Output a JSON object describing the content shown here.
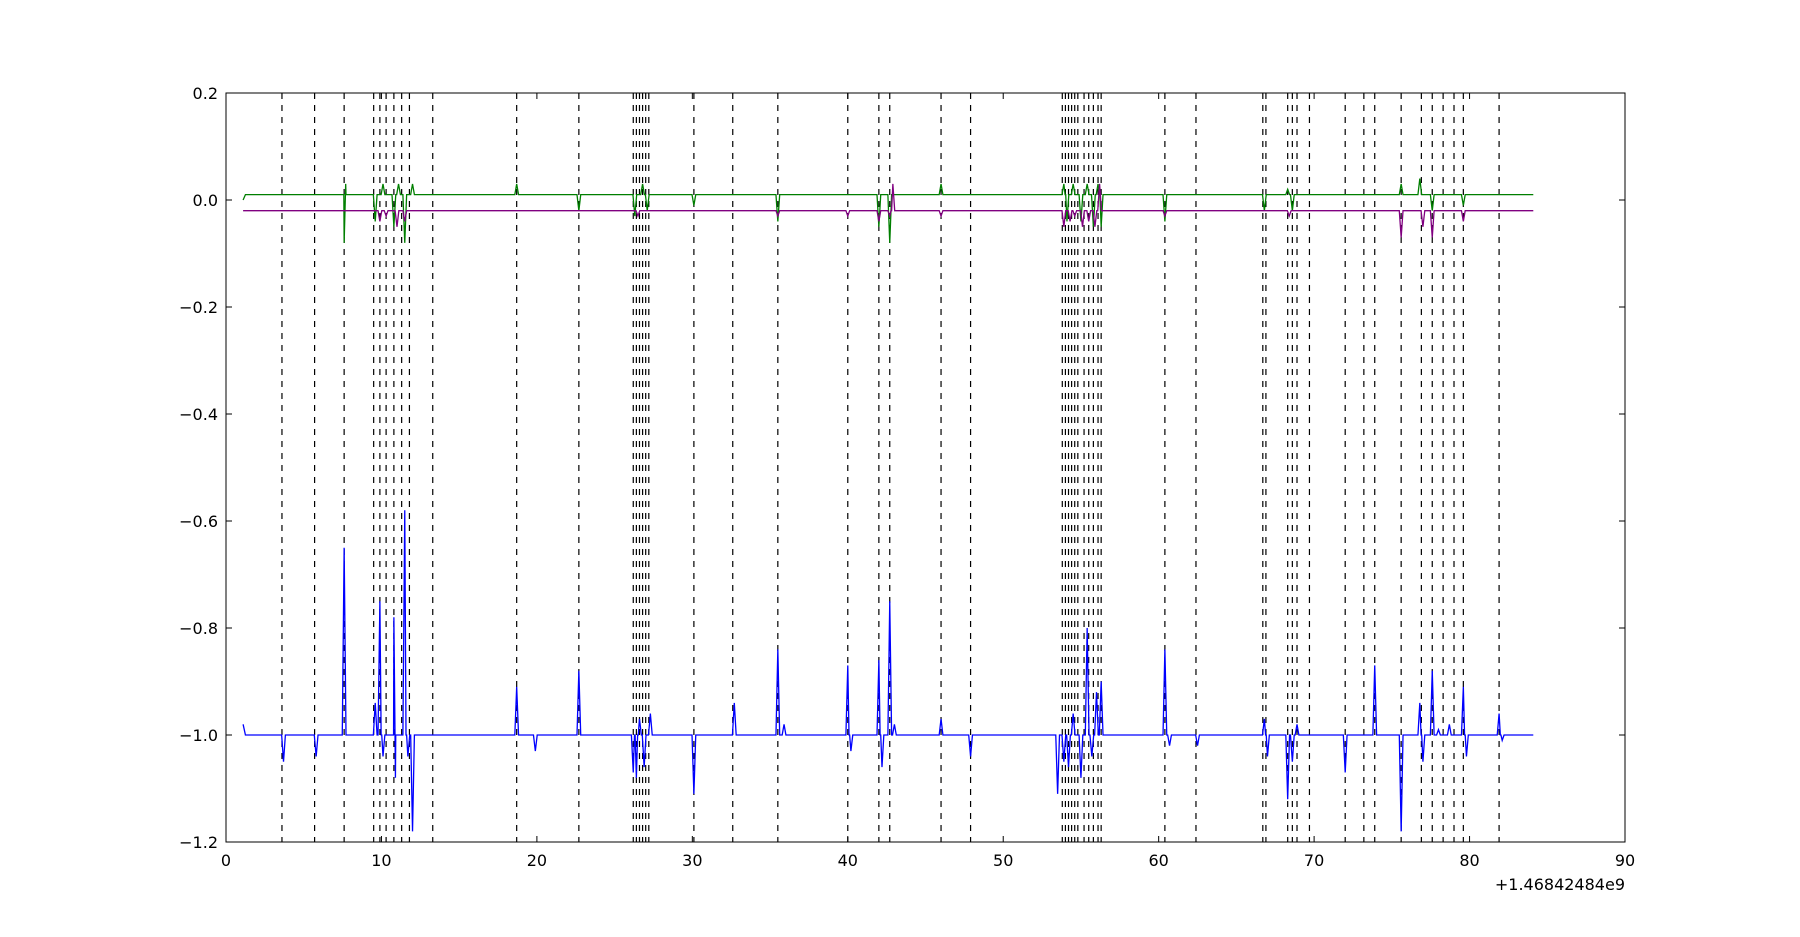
{
  "chart_data": {
    "type": "line",
    "title": "",
    "xlabel": "",
    "ylabel": "",
    "x_offset_label": "+1.46842484e9",
    "xlim": [
      0,
      90
    ],
    "ylim": [
      -1.2,
      0.2
    ],
    "x_ticks": [
      0,
      10,
      20,
      30,
      40,
      50,
      60,
      70,
      80,
      90
    ],
    "x_tick_labels": [
      "0",
      "10",
      "20",
      "30",
      "40",
      "50",
      "60",
      "70",
      "80",
      "90"
    ],
    "y_ticks": [
      0.2,
      0.0,
      -0.2,
      -0.4,
      -0.6,
      -0.8,
      -1.0,
      -1.2
    ],
    "y_tick_labels": [
      "0.2",
      "0.0",
      "−0.2",
      "−0.4",
      "−0.6",
      "−0.8",
      "−1.0",
      "−1.2"
    ],
    "grid": false,
    "legend": "none",
    "vertical_dashed_lines_x": [
      3.6,
      5.7,
      7.6,
      9.5,
      9.9,
      10.3,
      10.8,
      11.3,
      11.8,
      13.3,
      18.7,
      22.7,
      26.2,
      26.4,
      26.6,
      26.8,
      27.0,
      27.2,
      30.1,
      32.6,
      35.5,
      40.0,
      42.0,
      42.7,
      46.0,
      47.9,
      53.8,
      54.0,
      54.2,
      54.4,
      54.6,
      54.8,
      55.2,
      55.5,
      55.8,
      56.1,
      56.3,
      60.4,
      62.4,
      66.7,
      66.9,
      68.3,
      68.6,
      68.9,
      69.7,
      72.0,
      73.2,
      73.9,
      75.6,
      76.9,
      77.6,
      78.3,
      79.0,
      79.6,
      81.9
    ],
    "series": [
      {
        "color": "#0000ff",
        "baseline": -1.0,
        "start": [
          1.1,
          -0.98
        ],
        "end": 84.1,
        "spikes": [
          [
            3.7,
            -1.05
          ],
          [
            5.8,
            -1.04
          ],
          [
            7.6,
            -0.65
          ],
          [
            9.6,
            -0.94
          ],
          [
            9.9,
            -0.75
          ],
          [
            10.1,
            -1.04
          ],
          [
            10.8,
            -0.78
          ],
          [
            10.9,
            -1.08
          ],
          [
            11.5,
            -0.58
          ],
          [
            11.7,
            -1.04
          ],
          [
            12.0,
            -1.18
          ],
          [
            18.7,
            -0.91
          ],
          [
            19.9,
            -1.03
          ],
          [
            22.7,
            -0.88
          ],
          [
            26.2,
            -1.07
          ],
          [
            26.4,
            -1.08
          ],
          [
            26.6,
            -0.97
          ],
          [
            26.9,
            -1.06
          ],
          [
            27.3,
            -0.96
          ],
          [
            30.1,
            -1.11
          ],
          [
            32.7,
            -0.94
          ],
          [
            35.5,
            -0.84
          ],
          [
            35.9,
            -0.98
          ],
          [
            40.0,
            -0.87
          ],
          [
            40.2,
            -1.03
          ],
          [
            42.0,
            -0.86
          ],
          [
            42.2,
            -1.06
          ],
          [
            42.7,
            -0.75
          ],
          [
            43.0,
            -0.98
          ],
          [
            46.0,
            -0.97
          ],
          [
            47.9,
            -1.04
          ],
          [
            53.5,
            -1.11
          ],
          [
            53.9,
            -1.05
          ],
          [
            54.2,
            -1.06
          ],
          [
            54.5,
            -0.96
          ],
          [
            55.0,
            -1.08
          ],
          [
            55.4,
            -0.8
          ],
          [
            55.7,
            -1.04
          ],
          [
            56.0,
            -0.92
          ],
          [
            56.3,
            -0.9
          ],
          [
            60.4,
            -0.84
          ],
          [
            60.7,
            -1.02
          ],
          [
            62.5,
            -1.02
          ],
          [
            66.8,
            -0.97
          ],
          [
            67.0,
            -1.04
          ],
          [
            68.3,
            -1.12
          ],
          [
            68.6,
            -1.05
          ],
          [
            68.9,
            -0.98
          ],
          [
            72.0,
            -1.07
          ],
          [
            73.9,
            -0.87
          ],
          [
            75.6,
            -1.18
          ],
          [
            76.8,
            -0.94
          ],
          [
            77.0,
            -1.05
          ],
          [
            77.6,
            -0.88
          ],
          [
            78.0,
            -0.99
          ],
          [
            78.7,
            -0.98
          ],
          [
            79.0,
            -1.0
          ],
          [
            79.6,
            -0.91
          ],
          [
            79.8,
            -1.04
          ],
          [
            81.9,
            -0.96
          ],
          [
            82.1,
            -1.01
          ]
        ]
      },
      {
        "color": "#007f00",
        "baseline": 0.01,
        "start": [
          1.1,
          0.0
        ],
        "end": 84.1,
        "spikes": [
          [
            7.6,
            -0.08
          ],
          [
            7.7,
            0.03
          ],
          [
            9.6,
            -0.04
          ],
          [
            10.1,
            0.03
          ],
          [
            10.8,
            -0.05
          ],
          [
            11.1,
            0.03
          ],
          [
            11.5,
            -0.08
          ],
          [
            12.0,
            0.03
          ],
          [
            18.7,
            0.03
          ],
          [
            22.7,
            -0.02
          ],
          [
            26.3,
            -0.03
          ],
          [
            26.8,
            0.03
          ],
          [
            27.1,
            -0.02
          ],
          [
            30.1,
            -0.01
          ],
          [
            35.5,
            -0.04
          ],
          [
            42.0,
            -0.05
          ],
          [
            42.7,
            -0.08
          ],
          [
            46.0,
            0.03
          ],
          [
            53.9,
            0.03
          ],
          [
            54.1,
            -0.04
          ],
          [
            54.5,
            0.03
          ],
          [
            55.0,
            -0.04
          ],
          [
            55.4,
            0.03
          ],
          [
            55.8,
            -0.05
          ],
          [
            56.1,
            0.03
          ],
          [
            56.3,
            -0.05
          ],
          [
            60.4,
            -0.04
          ],
          [
            66.8,
            -0.02
          ],
          [
            68.3,
            0.02
          ],
          [
            68.6,
            -0.02
          ],
          [
            75.6,
            0.03
          ],
          [
            76.8,
            0.04
          ],
          [
            77.6,
            -0.02
          ],
          [
            79.6,
            -0.01
          ]
        ]
      },
      {
        "color": "#800080",
        "baseline": -0.02,
        "start": [
          1.1,
          -0.02
        ],
        "end": 84.1,
        "spikes": [
          [
            9.9,
            -0.04
          ],
          [
            10.3,
            -0.03
          ],
          [
            11.0,
            -0.05
          ],
          [
            11.5,
            -0.04
          ],
          [
            26.5,
            -0.03
          ],
          [
            35.5,
            -0.03
          ],
          [
            40.0,
            -0.03
          ],
          [
            42.0,
            -0.04
          ],
          [
            42.7,
            -0.03
          ],
          [
            42.9,
            0.03
          ],
          [
            46.0,
            -0.03
          ],
          [
            53.9,
            -0.05
          ],
          [
            54.3,
            -0.04
          ],
          [
            54.6,
            -0.03
          ],
          [
            55.1,
            -0.05
          ],
          [
            55.5,
            -0.04
          ],
          [
            55.9,
            -0.05
          ],
          [
            56.2,
            0.03
          ],
          [
            60.4,
            -0.03
          ],
          [
            68.4,
            -0.03
          ],
          [
            75.6,
            -0.07
          ],
          [
            77.0,
            -0.05
          ],
          [
            77.6,
            -0.07
          ],
          [
            79.6,
            -0.04
          ]
        ]
      }
    ]
  }
}
